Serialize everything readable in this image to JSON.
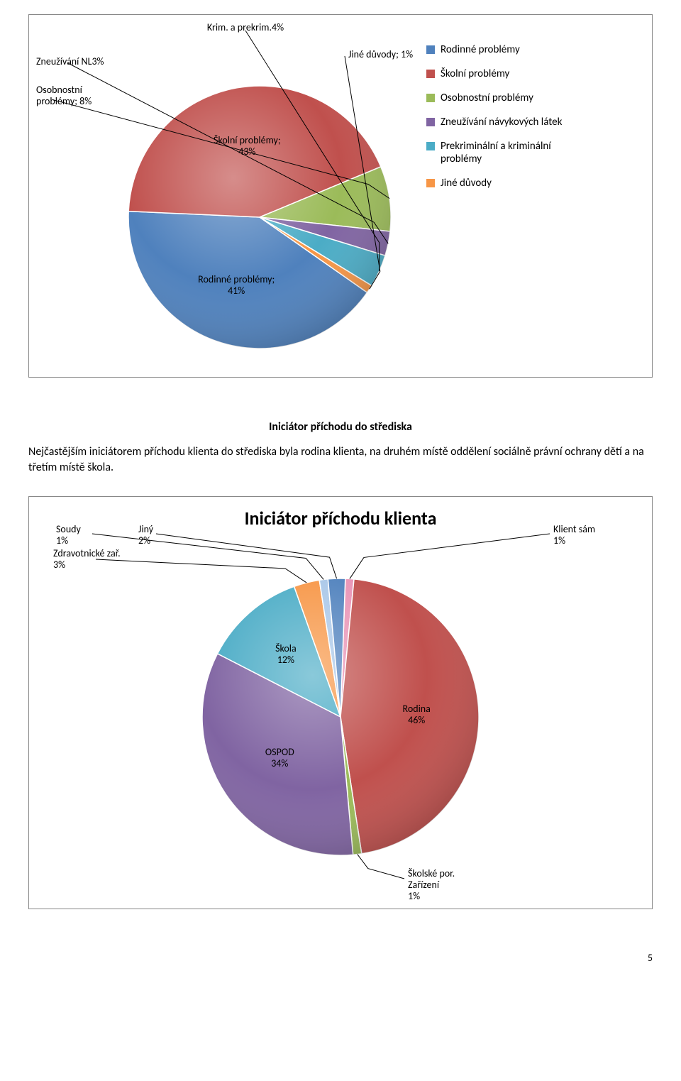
{
  "chart1": {
    "type": "pie",
    "background_color": "#ffffff",
    "slices": [
      {
        "label": "Rodinné problémy; 41%",
        "value": 41,
        "color": "#4f81bd"
      },
      {
        "label": "Školní problémy; 43%",
        "value": 43,
        "color": "#c0504d"
      },
      {
        "label": "Osobnostní problémy; 8%",
        "value": 8,
        "color": "#9bbb59"
      },
      {
        "label": "Zneužívání NL3%",
        "value": 3,
        "color": "#8064a2"
      },
      {
        "label": "Krim. a prekrim.4%",
        "value": 4,
        "color": "#4bacc6"
      },
      {
        "label": "Jiné důvody; 1%",
        "value": 1,
        "color": "#f79646"
      }
    ],
    "legend": [
      {
        "label": "Rodinné problémy",
        "color": "#4f81bd"
      },
      {
        "label": "Školní problémy",
        "color": "#c0504d"
      },
      {
        "label": "Osobnostní problémy",
        "color": "#9bbb59"
      },
      {
        "label": "Zneužívání návykových látek",
        "color": "#8064a2"
      },
      {
        "label": "Prekriminální a kriminální problémy",
        "color": "#4bacc6"
      },
      {
        "label": "Jiné důvody",
        "color": "#f79646"
      }
    ],
    "start_angle_deg": 35,
    "radius": 185,
    "border_color": "#ffffff",
    "border_width": 1.5,
    "callout_line_color": "#000000",
    "label_fontsize": 14
  },
  "section": {
    "heading": "Iniciátor příchodu do střediska",
    "paragraph": "Nejčastějším iniciátorem příchodu klienta do střediska byla rodina klienta, na druhém místě oddělení sociálně právní ochrany dětí a na třetím místě škola."
  },
  "chart2": {
    "type": "pie",
    "title": "Iniciátor příchodu klienta",
    "title_fontsize": 26,
    "background_color": "#ffffff",
    "slices": [
      {
        "label": "Klient sám 1%",
        "value": 1,
        "color": "#e993b5"
      },
      {
        "label": "Rodina 46%",
        "value": 46,
        "color": "#c0504d"
      },
      {
        "label": "Školské por. Zařízení 1%",
        "value": 1,
        "color": "#9bbb59"
      },
      {
        "label": "OSPOD 34%",
        "value": 34,
        "color": "#8064a2"
      },
      {
        "label": "Škola 12%",
        "value": 12,
        "color": "#4bacc6"
      },
      {
        "label": "Zdravotnické zař. 3%",
        "value": 3,
        "color": "#f79646"
      },
      {
        "label": "Soudy 1%",
        "value": 1,
        "color": "#a9c7e8"
      },
      {
        "label": "Jiný 2%",
        "value": 2,
        "color": "#4f81bd"
      }
    ],
    "start_angle_deg": -88,
    "radius": 195,
    "border_color": "#ffffff",
    "border_width": 1.5,
    "callout_line_color": "#000000",
    "label_fontsize": 14
  },
  "page_number": "5"
}
